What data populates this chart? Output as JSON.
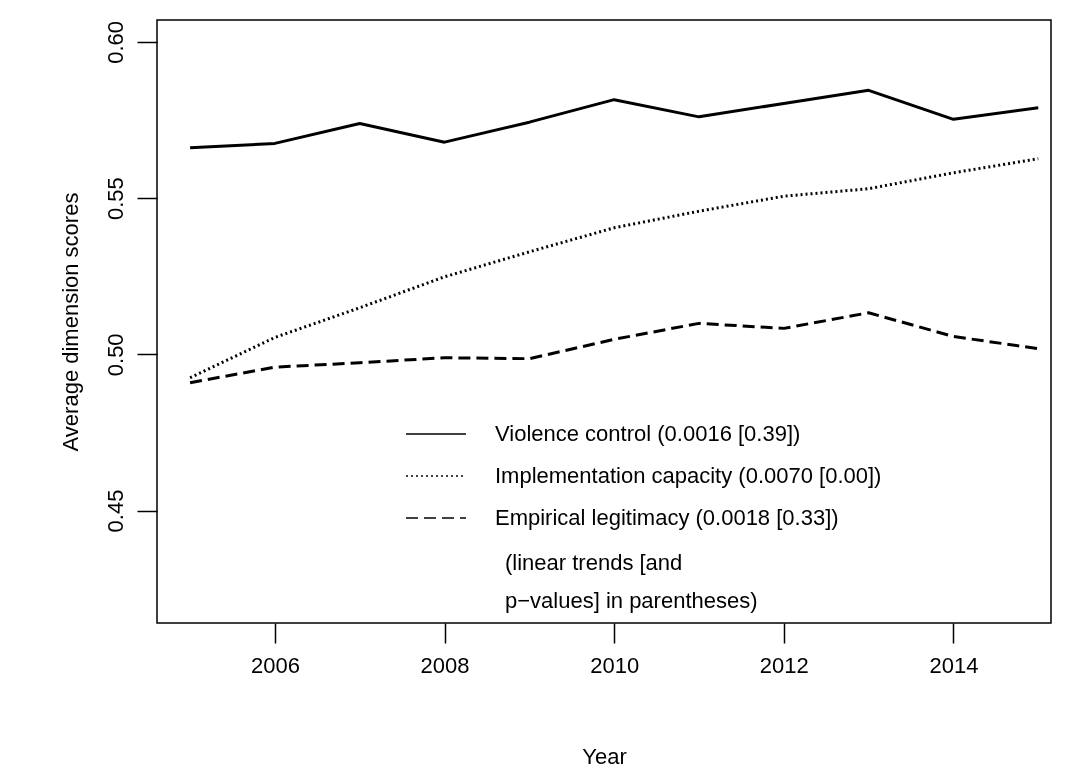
{
  "chart_data": {
    "type": "line",
    "xlabel": "Year",
    "ylabel": "Average dimension scores",
    "x": [
      2005,
      2006,
      2007,
      2008,
      2009,
      2010,
      2011,
      2012,
      2013,
      2014,
      2015
    ],
    "series": [
      {
        "name": "Violence control (0.0016 [0.39])",
        "color": "#000000",
        "line_style": "solid",
        "values": [
          0.5661,
          0.5675,
          0.5739,
          0.5679,
          0.5743,
          0.5815,
          0.576,
          0.5803,
          0.5845,
          0.5752,
          0.5789
        ]
      },
      {
        "name": "Implementation capacity (0.0070 [0.00])",
        "color": "#000000",
        "line_style": "dotted",
        "values": [
          0.4925,
          0.5054,
          0.5149,
          0.5248,
          0.5328,
          0.5405,
          0.5458,
          0.5506,
          0.553,
          0.5581,
          0.5626
        ]
      },
      {
        "name": "Empirical legitimacy (0.0018 [0.33])",
        "color": "#000000",
        "line_style": "dashed",
        "values": [
          0.4909,
          0.4959,
          0.4973,
          0.4989,
          0.4986,
          0.5048,
          0.5099,
          0.5083,
          0.5133,
          0.5057,
          0.5018
        ]
      }
    ],
    "annotations": [
      "(linear trends [and",
      "p−values] in parentheses)"
    ],
    "xlim": [
      2004.61,
      2015.15
    ],
    "ylim": [
      0.414,
      0.607
    ],
    "xticks": [
      2006,
      2008,
      2010,
      2012,
      2014
    ],
    "yticks": [
      {
        "value": 0.45,
        "label": "0.45"
      },
      {
        "value": 0.5,
        "label": "0.50"
      },
      {
        "value": 0.55,
        "label": "0.55"
      },
      {
        "value": 0.6,
        "label": "0.60"
      }
    ],
    "legend": "bottom right",
    "grid": false
  }
}
